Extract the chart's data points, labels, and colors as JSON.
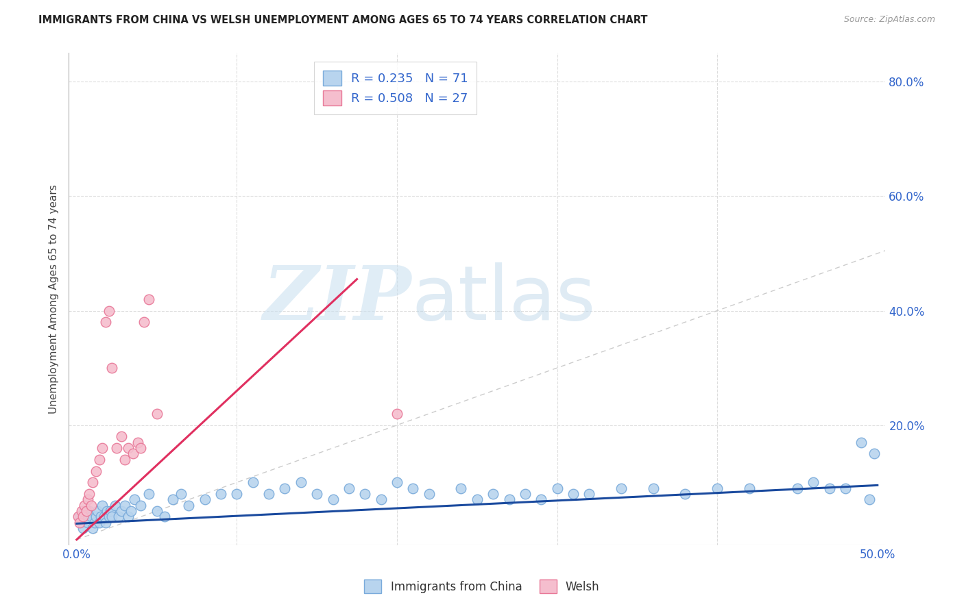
{
  "title": "IMMIGRANTS FROM CHINA VS WELSH UNEMPLOYMENT AMONG AGES 65 TO 74 YEARS CORRELATION CHART",
  "source": "Source: ZipAtlas.com",
  "ylabel": "Unemployment Among Ages 65 to 74 years",
  "xlim": [
    -0.005,
    0.505
  ],
  "ylim": [
    -0.01,
    0.85
  ],
  "xtick_positions": [
    0.0,
    0.1,
    0.2,
    0.3,
    0.4,
    0.5
  ],
  "xtick_labels": [
    "0.0%",
    "",
    "",
    "",
    "",
    "50.0%"
  ],
  "yticks_right": [
    0.2,
    0.4,
    0.6,
    0.8
  ],
  "ytick_right_labels": [
    "20.0%",
    "40.0%",
    "60.0%",
    "80.0%"
  ],
  "series1_name": "Immigrants from China",
  "series1_color": "#b8d4ee",
  "series1_edge_color": "#7aabdb",
  "series1_line_color": "#1a4a9e",
  "series1_R": 0.235,
  "series1_N": 71,
  "series2_name": "Welsh",
  "series2_color": "#f5bece",
  "series2_edge_color": "#e87898",
  "series2_line_color": "#e03060",
  "series2_R": 0.508,
  "series2_N": 27,
  "legend_R_color": "#3366cc",
  "legend_N_color": "#3366cc",
  "watermark_text": "ZIPatlas",
  "watermark_color": "#d8eaf8",
  "background_color": "#ffffff",
  "grid_color": "#dddddd",
  "ref_line_color": "#cccccc",
  "title_color": "#222222",
  "source_color": "#999999",
  "ylabel_color": "#444444",
  "tick_label_color": "#3366cc",
  "bottom_legend_color": "#333333",
  "series1_x": [
    0.002,
    0.003,
    0.004,
    0.005,
    0.006,
    0.007,
    0.008,
    0.009,
    0.01,
    0.011,
    0.012,
    0.013,
    0.014,
    0.015,
    0.016,
    0.017,
    0.018,
    0.019,
    0.02,
    0.021,
    0.022,
    0.024,
    0.026,
    0.028,
    0.03,
    0.032,
    0.034,
    0.036,
    0.04,
    0.045,
    0.05,
    0.055,
    0.06,
    0.065,
    0.07,
    0.08,
    0.09,
    0.1,
    0.11,
    0.12,
    0.13,
    0.14,
    0.15,
    0.16,
    0.17,
    0.18,
    0.19,
    0.2,
    0.21,
    0.22,
    0.24,
    0.25,
    0.26,
    0.27,
    0.28,
    0.29,
    0.3,
    0.31,
    0.32,
    0.34,
    0.36,
    0.38,
    0.4,
    0.42,
    0.45,
    0.46,
    0.47,
    0.48,
    0.49,
    0.495,
    0.498
  ],
  "series1_y": [
    0.04,
    0.03,
    0.02,
    0.05,
    0.04,
    0.03,
    0.05,
    0.04,
    0.02,
    0.03,
    0.04,
    0.05,
    0.03,
    0.04,
    0.06,
    0.04,
    0.03,
    0.05,
    0.04,
    0.05,
    0.04,
    0.06,
    0.04,
    0.05,
    0.06,
    0.04,
    0.05,
    0.07,
    0.06,
    0.08,
    0.05,
    0.04,
    0.07,
    0.08,
    0.06,
    0.07,
    0.08,
    0.08,
    0.1,
    0.08,
    0.09,
    0.1,
    0.08,
    0.07,
    0.09,
    0.08,
    0.07,
    0.1,
    0.09,
    0.08,
    0.09,
    0.07,
    0.08,
    0.07,
    0.08,
    0.07,
    0.09,
    0.08,
    0.08,
    0.09,
    0.09,
    0.08,
    0.09,
    0.09,
    0.09,
    0.1,
    0.09,
    0.09,
    0.17,
    0.07,
    0.15
  ],
  "series2_x": [
    0.001,
    0.002,
    0.003,
    0.004,
    0.005,
    0.006,
    0.007,
    0.008,
    0.009,
    0.01,
    0.012,
    0.014,
    0.016,
    0.018,
    0.02,
    0.022,
    0.025,
    0.028,
    0.03,
    0.032,
    0.035,
    0.038,
    0.04,
    0.042,
    0.045,
    0.05,
    0.2
  ],
  "series2_y": [
    0.04,
    0.03,
    0.05,
    0.04,
    0.06,
    0.05,
    0.07,
    0.08,
    0.06,
    0.1,
    0.12,
    0.14,
    0.16,
    0.38,
    0.4,
    0.3,
    0.16,
    0.18,
    0.14,
    0.16,
    0.15,
    0.17,
    0.16,
    0.38,
    0.42,
    0.22,
    0.22
  ],
  "pink_trend_x0": 0.0,
  "pink_trend_y0": 0.0,
  "pink_trend_x1": 0.175,
  "pink_trend_y1": 0.455,
  "blue_trend_x0": 0.0,
  "blue_trend_y0": 0.028,
  "blue_trend_x1": 0.5,
  "blue_trend_y1": 0.095
}
